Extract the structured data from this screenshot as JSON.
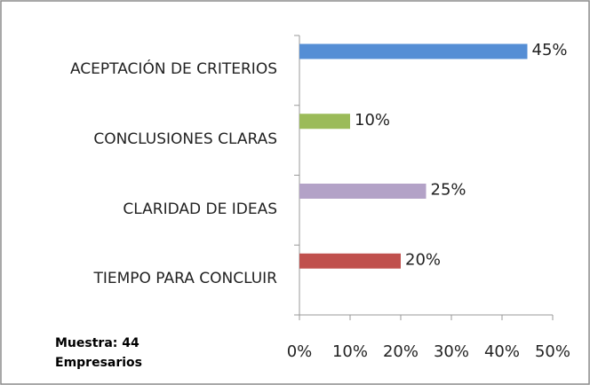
{
  "chart_data": {
    "type": "barh",
    "categories": [
      "ACEPTACIÓN DE CRITERIOS",
      "CONCLUSIONES CLARAS",
      "CLARIDAD DE IDEAS",
      "TIEMPO PARA CONCLUIR"
    ],
    "values": [
      45,
      10,
      25,
      20
    ],
    "value_labels": [
      "45%",
      "10%",
      "25%",
      "20%"
    ],
    "colors": [
      "#558ed5",
      "#9bbb59",
      "#b3a2c7",
      "#c0504d"
    ],
    "xlim": [
      0,
      50
    ],
    "xticks": [
      {
        "value": 0,
        "label": "0%"
      },
      {
        "value": 10,
        "label": "10%"
      },
      {
        "value": 20,
        "label": "20%"
      },
      {
        "value": 30,
        "label": "30%"
      },
      {
        "value": 40,
        "label": "40%"
      },
      {
        "value": 50,
        "label": "50%"
      }
    ],
    "annotation": "Muestra: 44 Empresarios"
  }
}
